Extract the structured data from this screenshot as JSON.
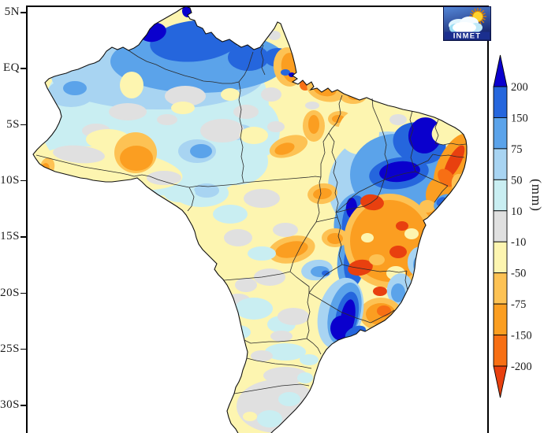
{
  "figure": {
    "background": "#ffffff",
    "axis": {
      "tick_labels": [
        "5N",
        "EQ",
        "5S",
        "10S",
        "15S",
        "20S",
        "25S",
        "30S"
      ]
    },
    "colorbar": {
      "unit_label": "(mm)",
      "tick_labels": [
        "200",
        "150",
        "75",
        "50",
        "10",
        "-10",
        "-50",
        "-75",
        "-150",
        "-200"
      ],
      "segment_colors_top_to_bottom": [
        "#0a00cd",
        "#2566dd",
        "#5ba3ea",
        "#a8d4f2",
        "#c9eef2",
        "#e0e0e0",
        "#fdf5b0",
        "#fdc254",
        "#fb9e21",
        "#f76f14",
        "#e8400f"
      ]
    },
    "logo": {
      "text": "INMET"
    }
  },
  "chart_data": {
    "type": "heatmap",
    "subtype": "filled-contour anomaly map (GrADS style)",
    "region": "Brazil with state boundaries",
    "units": "mm",
    "title": "",
    "lat_ticks": [
      "5N",
      "EQ",
      "5S",
      "10S",
      "15S",
      "20S",
      "25S",
      "30S"
    ],
    "color_levels": [
      200,
      150,
      75,
      50,
      10,
      -10,
      -50,
      -75,
      -150,
      -200
    ],
    "palette": {
      "above_200": "#0a00cd",
      "150_to_200": "#2566dd",
      "75_to_150": "#5ba3ea",
      "50_to_75": "#a8d4f2",
      "10_to_50": "#c9eef2",
      "minus10_to_10": "#e0e0e0",
      "minus50_to_minus10": "#fdf5b0",
      "minus75_to_minus50": "#fdc254",
      "minus150_to_minus75": "#fb9e21",
      "minus200_to_minus150": "#f76f14",
      "below_minus200": "#e8400f"
    },
    "legend_position": "right vertical colorbar with arrow caps",
    "grid": false,
    "notable_anomalies": [
      {
        "area": "Northern Roraima",
        "value_mm": "75 to >200 (dark blue core)"
      },
      {
        "area": "Northern Amazonas / Roraima band",
        "value_mm": "75 to 200"
      },
      {
        "area": "Central Ceara and Piaui-Ceara border",
        "value_mm": "150 to >200 (dark blue cores)"
      },
      {
        "area": "Eastern Northeast coastal strip (RN-PB-PE-AL)",
        "value_mm": "-75 to < -200 (orange/red band)"
      },
      {
        "area": "Interior Bahia / northern Minas Gerais",
        "value_mm": "-75 to -200 with small < -200 cores"
      },
      {
        "area": "Amapa",
        "value_mm": "-50 to -150"
      },
      {
        "area": "Northeastern Para near Amazon mouth",
        "value_mm": "-50 to -150"
      },
      {
        "area": "Southern Amazonas blob",
        "value_mm": "-75 to -150"
      },
      {
        "area": "Southern Minas Gerais / eastern Sao Paulo band",
        "value_mm": "150 to >200 (dark blue)"
      },
      {
        "area": "Western Amazonia",
        "value_mm": "10 to 75 (light blue/cyan)"
      },
      {
        "area": "Central Brazil (MT, GO, TO)",
        "value_mm": "-10 to -50 (pale yellow) with -75 to -150 spots"
      },
      {
        "area": "South region (PR, SC, RS)",
        "value_mm": "-10 to +50 (gray/cyan, near neutral)"
      }
    ]
  }
}
